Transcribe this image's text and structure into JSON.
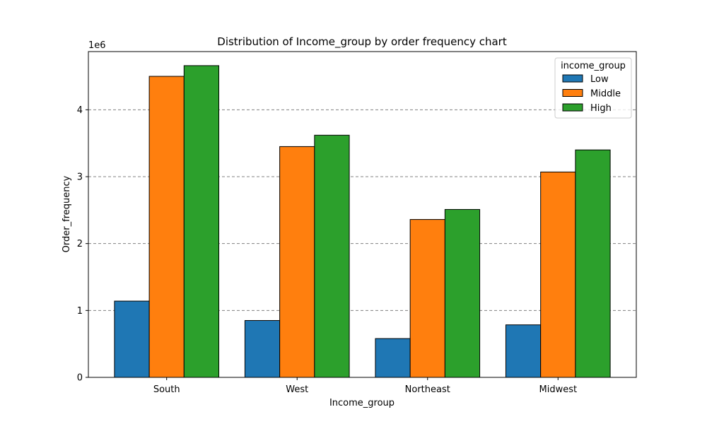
{
  "chart_data": {
    "type": "bar",
    "title": "Distribution of Income_group by order frequency chart",
    "xlabel": "Income_group",
    "ylabel": "Order_frequency",
    "y_scale_label": "1e6",
    "categories": [
      "South",
      "West",
      "Northeast",
      "Midwest"
    ],
    "series": [
      {
        "name": "Low",
        "color": "#1f77b4",
        "values": [
          1140000,
          850000,
          580000,
          785000
        ]
      },
      {
        "name": "Middle",
        "color": "#ff7f0e",
        "values": [
          4500000,
          3450000,
          2360000,
          3070000
        ]
      },
      {
        "name": "High",
        "color": "#2ca02c",
        "values": [
          4660000,
          3620000,
          2510000,
          3400000
        ]
      }
    ],
    "y_ticks": [
      0,
      1000000,
      2000000,
      3000000,
      4000000
    ],
    "y_tick_labels": [
      "0",
      "1",
      "2",
      "3",
      "4"
    ],
    "ylim": [
      0,
      4870000
    ],
    "grid": "y-dashed",
    "legend": {
      "title": "income_group",
      "placement": "top-right"
    }
  }
}
